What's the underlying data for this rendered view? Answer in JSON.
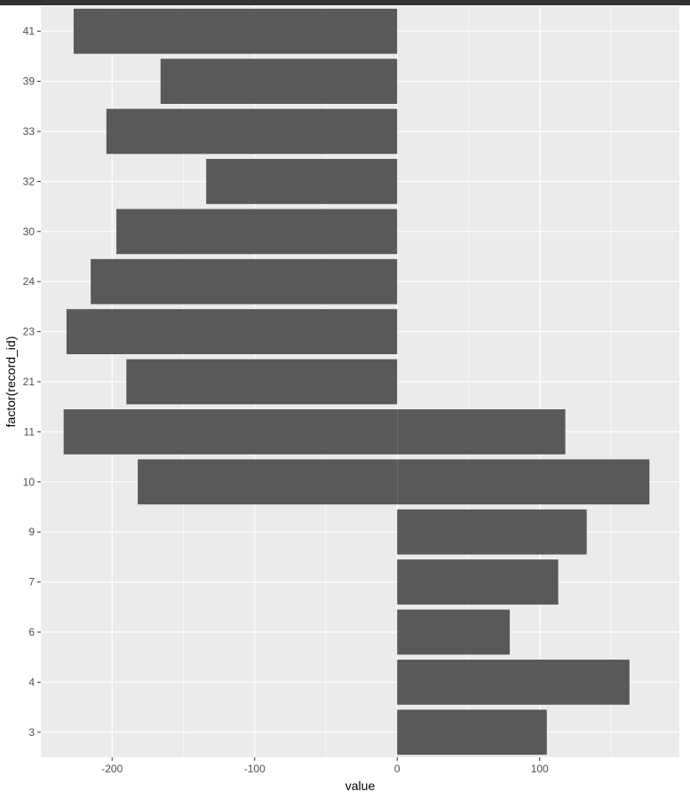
{
  "chart_data": {
    "type": "bar",
    "orientation": "horizontal",
    "xlabel": "value",
    "ylabel": "factor(record_id)",
    "xlim": [
      -250,
      198
    ],
    "x_ticks": [
      -200,
      -100,
      0,
      100
    ],
    "grid": true,
    "bar_color": "#595959",
    "panel_background": "#ebebeb",
    "grid_color": "#ffffff",
    "categories": [
      "3",
      "4",
      "6",
      "7",
      "9",
      "10",
      "11",
      "21",
      "23",
      "24",
      "30",
      "32",
      "33",
      "39",
      "41"
    ],
    "series": [
      {
        "values": [
          0,
          0,
          0,
          0,
          0,
          -182,
          -234,
          -190,
          -232,
          -215,
          -197,
          -134,
          -204,
          -166,
          -227
        ]
      },
      {
        "values": [
          105,
          163,
          79,
          113,
          133,
          177,
          118,
          0,
          0,
          0,
          0,
          0,
          0,
          0,
          0
        ]
      }
    ]
  }
}
